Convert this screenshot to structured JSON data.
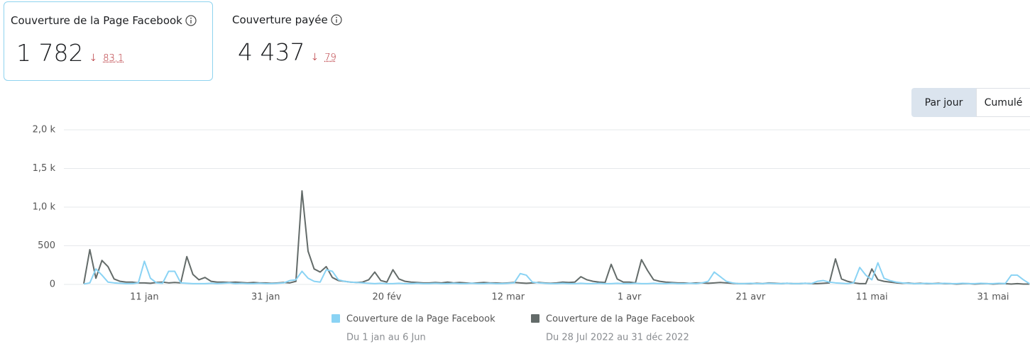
{
  "cards": [
    {
      "title": "Couverture de la Page Facebook",
      "value": "1 782",
      "change": "83,1"
    },
    {
      "title": "Couverture payée",
      "value": "4 437",
      "change": "79"
    }
  ],
  "buttons": [
    "Par jour",
    "Cumulé"
  ],
  "chart_data": {
    "type": "line",
    "categories": [
      null,
      null,
      null,
      null,
      null,
      null,
      null,
      null,
      null,
      null,
      "11 jan",
      null,
      null,
      null,
      null,
      null,
      null,
      null,
      null,
      null,
      null,
      null,
      null,
      null,
      null,
      null,
      null,
      null,
      null,
      null,
      "31 jan",
      null,
      null,
      null,
      null,
      null,
      null,
      null,
      null,
      null,
      null,
      null,
      null,
      null,
      null,
      null,
      null,
      null,
      null,
      null,
      "20 fév",
      null,
      null,
      null,
      null,
      null,
      null,
      null,
      null,
      null,
      null,
      null,
      null,
      null,
      null,
      null,
      null,
      null,
      null,
      null,
      "12 mar",
      null,
      null,
      null,
      null,
      null,
      null,
      null,
      null,
      null,
      null,
      null,
      null,
      null,
      null,
      null,
      null,
      null,
      null,
      null,
      "1 avr",
      null,
      null,
      null,
      null,
      null,
      null,
      null,
      null,
      null,
      null,
      null,
      null,
      null,
      null,
      null,
      null,
      null,
      null,
      null,
      "21 avr",
      null,
      null,
      null,
      null,
      null,
      null,
      null,
      null,
      null,
      null,
      null,
      null,
      null,
      null,
      null,
      null,
      null,
      null,
      null,
      "11 mai",
      null,
      null,
      null,
      null,
      null,
      null,
      null,
      null,
      null,
      null,
      null,
      null,
      null,
      null,
      null,
      null,
      null,
      null,
      null,
      "31 mai",
      null,
      null,
      null,
      null,
      null,
      null
    ],
    "series": [
      {
        "name": "Couverture de la Page Facebook",
        "period": "Du 1 jan au 6 Jun",
        "color": "#8ad3f4",
        "values": [
          5,
          20,
          200,
          120,
          30,
          20,
          15,
          10,
          10,
          20,
          300,
          80,
          20,
          15,
          170,
          170,
          20,
          15,
          10,
          10,
          10,
          15,
          10,
          15,
          20,
          10,
          15,
          10,
          10,
          15,
          10,
          10,
          15,
          20,
          50,
          60,
          170,
          80,
          40,
          30,
          190,
          170,
          60,
          40,
          30,
          25,
          20,
          15,
          10,
          15,
          10,
          10,
          15,
          10,
          10,
          15,
          10,
          10,
          15,
          10,
          10,
          15,
          10,
          10,
          15,
          10,
          10,
          15,
          10,
          10,
          15,
          20,
          140,
          120,
          30,
          20,
          15,
          10,
          10,
          15,
          10,
          10,
          15,
          10,
          10,
          15,
          10,
          10,
          15,
          10,
          10,
          15,
          10,
          10,
          15,
          10,
          10,
          15,
          10,
          10,
          15,
          10,
          20,
          40,
          160,
          100,
          40,
          20,
          10,
          10,
          15,
          10,
          10,
          15,
          10,
          10,
          15,
          10,
          10,
          15,
          10,
          40,
          50,
          30,
          20,
          15,
          10,
          20,
          220,
          120,
          60,
          280,
          80,
          50,
          30,
          20,
          15,
          10,
          10,
          15,
          10,
          10,
          15,
          10,
          10,
          15,
          10,
          10,
          15,
          10,
          10,
          15,
          10,
          120,
          120,
          60,
          10
        ]
      },
      {
        "name": "Couverture de la Page Facebook",
        "period": "Du 28 Jul 2022 au 31 déc 2022",
        "color": "#636b69",
        "values": [
          10,
          450,
          80,
          310,
          230,
          70,
          40,
          30,
          30,
          20,
          20,
          15,
          25,
          30,
          20,
          25,
          20,
          360,
          130,
          60,
          90,
          40,
          30,
          30,
          25,
          30,
          25,
          20,
          25,
          20,
          20,
          15,
          20,
          25,
          20,
          40,
          1210,
          430,
          200,
          160,
          230,
          90,
          50,
          40,
          30,
          25,
          30,
          60,
          160,
          50,
          30,
          190,
          70,
          40,
          30,
          25,
          20,
          20,
          25,
          20,
          30,
          20,
          25,
          20,
          15,
          20,
          25,
          20,
          20,
          15,
          20,
          25,
          20,
          15,
          20,
          25,
          20,
          15,
          20,
          30,
          25,
          30,
          100,
          60,
          40,
          30,
          25,
          260,
          70,
          30,
          30,
          20,
          320,
          180,
          60,
          40,
          30,
          25,
          20,
          20,
          15,
          20,
          20,
          15,
          20,
          25,
          20,
          15,
          10,
          10,
          10,
          15,
          10,
          20,
          15,
          10,
          15,
          10,
          10,
          15,
          10,
          10,
          15,
          20,
          330,
          70,
          40,
          20,
          10,
          10,
          200,
          60,
          40,
          30,
          20,
          15,
          20,
          10,
          15,
          10,
          10,
          15,
          10,
          10,
          5,
          10,
          10,
          5,
          10,
          10,
          5,
          10,
          10,
          5,
          10,
          5,
          5
        ]
      }
    ],
    "ylim": [
      0,
      2000
    ],
    "yticks": [
      0,
      500,
      {
        "value": 1000,
        "label": "1,0 k"
      },
      {
        "value": 1500,
        "label": "1,5 k"
      },
      {
        "value": 2000,
        "label": "2,0 k"
      }
    ],
    "grid": true
  }
}
